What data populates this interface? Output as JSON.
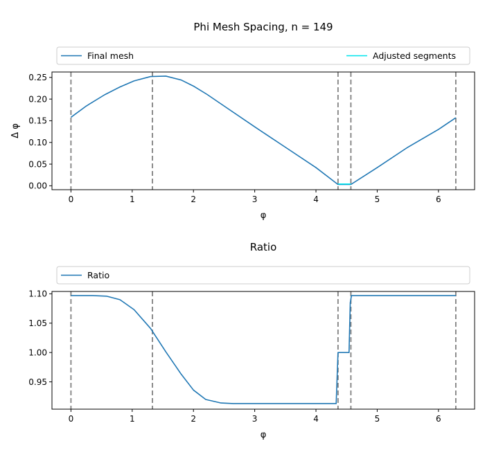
{
  "colors": {
    "series_blue": "#1f77b4",
    "adjusted_cyan": "#00e5ee",
    "breakpoint_gray": "#808080"
  },
  "chart_data": [
    {
      "type": "line",
      "title": "Phi Mesh Spacing, n = 149",
      "xlabel": "φ",
      "ylabel": "Δ φ",
      "xlim": [
        -0.31,
        6.59
      ],
      "ylim": [
        -0.009,
        0.2625
      ],
      "xticks": [
        "0",
        "1",
        "2",
        "3",
        "4",
        "5",
        "6"
      ],
      "yticks": [
        "0.00",
        "0.05",
        "0.10",
        "0.15",
        "0.20",
        "0.25"
      ],
      "legend": {
        "placement": "above",
        "entries": [
          "Final mesh",
          "Adjusted segments"
        ]
      },
      "breakpoints": [
        0.0,
        1.33,
        4.36,
        4.57,
        6.283
      ],
      "series": [
        {
          "name": "Final mesh",
          "x": [
            0.0,
            0.25,
            0.55,
            0.8,
            1.03,
            1.3,
            1.55,
            1.8,
            2.0,
            2.22,
            2.5,
            3.0,
            3.5,
            4.0,
            4.36,
            4.57,
            5.0,
            5.5,
            6.0,
            6.283
          ],
          "y": [
            0.158,
            0.184,
            0.21,
            0.228,
            0.242,
            0.252,
            0.253,
            0.244,
            0.23,
            0.211,
            0.184,
            0.136,
            0.089,
            0.042,
            0.003,
            0.003,
            0.042,
            0.089,
            0.13,
            0.157
          ]
        },
        {
          "name": "Adjusted segments",
          "x": [
            4.36,
            4.57
          ],
          "y": [
            0.004,
            0.004
          ]
        }
      ]
    },
    {
      "type": "line",
      "title": "Ratio",
      "xlabel": "φ",
      "ylabel": "",
      "xlim": [
        -0.31,
        6.59
      ],
      "ylim": [
        0.9035,
        1.104
      ],
      "xticks": [
        "0",
        "1",
        "2",
        "3",
        "4",
        "5",
        "6"
      ],
      "yticks": [
        "0.95",
        "1.00",
        "1.05",
        "1.10"
      ],
      "legend": {
        "placement": "above",
        "entries": [
          "Ratio"
        ]
      },
      "breakpoints": [
        0.0,
        1.33,
        4.36,
        4.57,
        6.283
      ],
      "series": [
        {
          "name": "Ratio",
          "x": [
            0.0,
            0.35,
            0.58,
            0.8,
            1.03,
            1.3,
            1.55,
            1.8,
            2.0,
            2.2,
            2.45,
            2.65,
            3.0,
            3.5,
            4.0,
            4.33,
            4.36,
            4.54,
            4.56,
            4.58,
            5.0,
            5.5,
            6.0,
            6.283
          ],
          "y": [
            1.097,
            1.097,
            1.096,
            1.09,
            1.073,
            1.041,
            1.001,
            0.963,
            0.936,
            0.92,
            0.914,
            0.913,
            0.913,
            0.913,
            0.913,
            0.913,
            1.0,
            1.0,
            1.085,
            1.097,
            1.097,
            1.097,
            1.097,
            1.097
          ]
        }
      ]
    }
  ]
}
